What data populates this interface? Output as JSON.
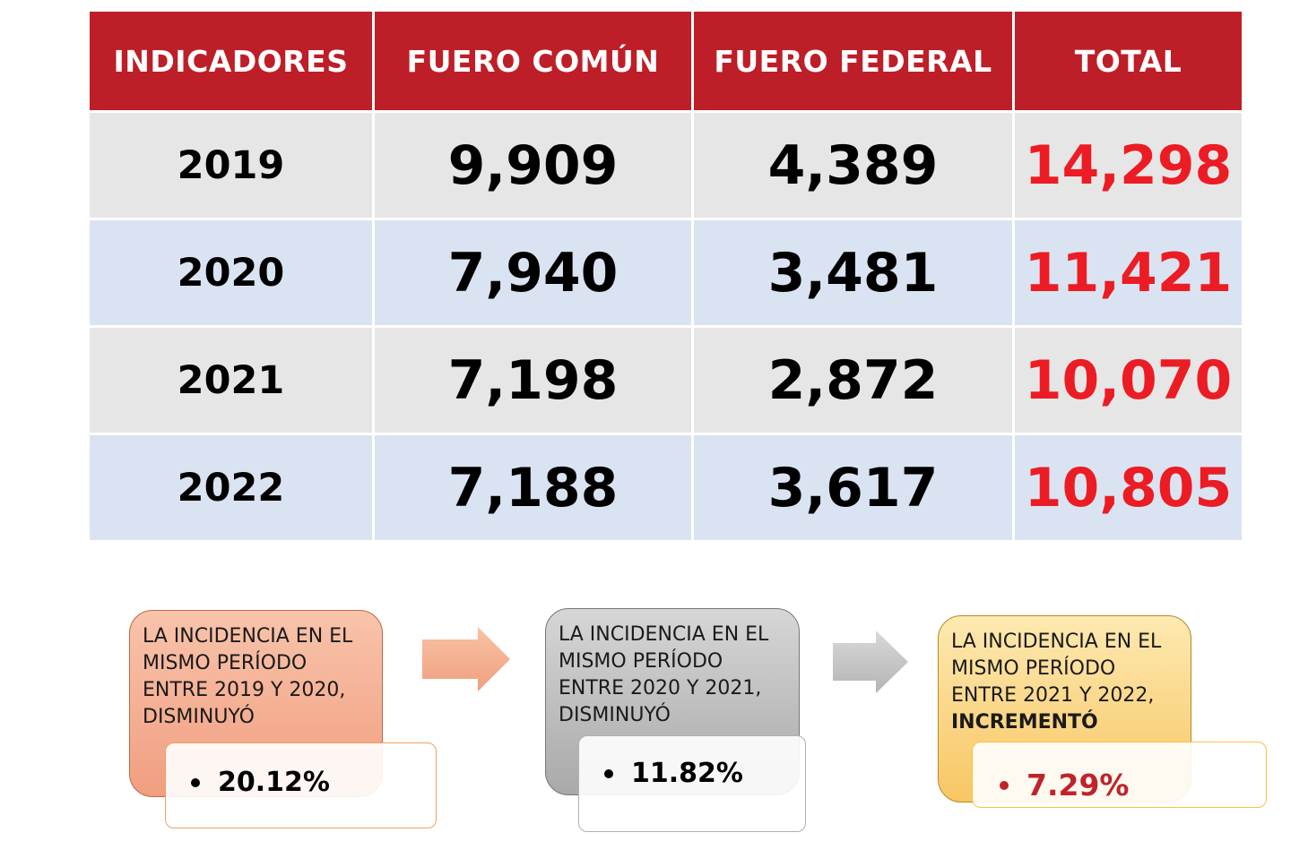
{
  "table": {
    "headers": [
      "INDICADORES",
      "FUERO COMÚN",
      "FUERO FEDERAL",
      "TOTAL"
    ],
    "rows": [
      {
        "year": "2019",
        "comun": "9,909",
        "federal": "4,389",
        "total": "14,298"
      },
      {
        "year": "2020",
        "comun": "7,940",
        "federal": "3,481",
        "total": "11,421"
      },
      {
        "year": "2021",
        "comun": "7,198",
        "federal": "2,872",
        "total": "10,070"
      },
      {
        "year": "2022",
        "comun": "7,188",
        "federal": "3,617",
        "total": "10,805"
      }
    ]
  },
  "colors": {
    "header_bg": "#be1e27",
    "row_gray": "#e7e6e6",
    "row_blue": "#dae3f1",
    "total_text": "#ec1c24"
  },
  "boxes": [
    {
      "line1": "LA INCIDENCIA EN EL",
      "line2": "MISMO PERÍODO",
      "line3": "ENTRE 2019 Y 2020,",
      "line4": "DISMINUYÓ",
      "value": "20.12%"
    },
    {
      "line1": "LA INCIDENCIA EN EL",
      "line2": "MISMO PERÍODO",
      "line3": "ENTRE 2020 Y 2021,",
      "line4": "DISMINUYÓ",
      "value": "11.82%"
    },
    {
      "line1": "LA INCIDENCIA EN EL",
      "line2": "MISMO PERÍODO",
      "line3": "ENTRE 2021 Y 2022,",
      "line4": "INCREMENTÓ",
      "value": "7.29%"
    }
  ],
  "icons": [
    "arrow-right-icon",
    "arrow-right-icon"
  ]
}
